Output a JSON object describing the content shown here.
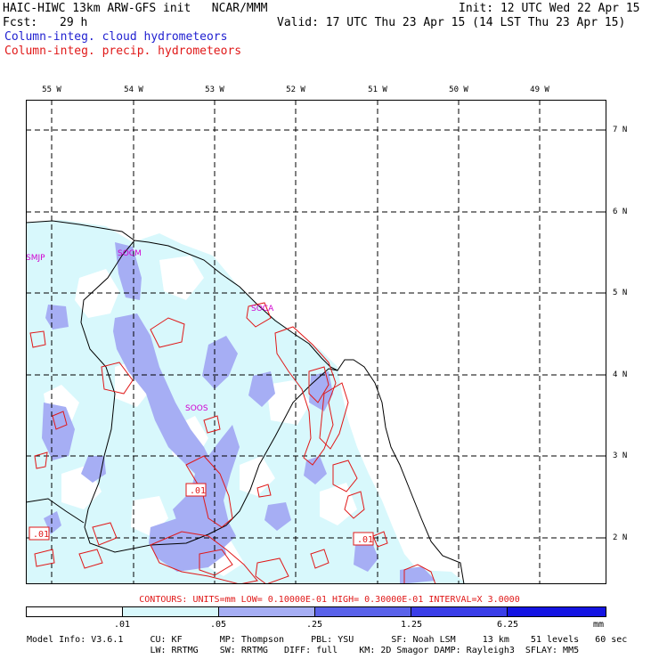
{
  "header": {
    "title_left": "HAIC-HIWC 13km ARW-GFS init   NCAR/MMM",
    "init": "Init: 12 UTC Wed 22 Apr 15",
    "fcst_label": "Fcst:",
    "fcst_value": "29 h",
    "valid": "Valid: 17 UTC Thu 23 Apr 15 (14 LST Thu 23 Apr 15)",
    "field1": "Column-integ. cloud hydrometeors",
    "field2": "Column-integ. precip. hydrometeors"
  },
  "colors": {
    "cloud_fill_1": "#d8f8fc",
    "cloud_fill_2": "#a6aef4",
    "cloud_fill_3": "#5a62ea",
    "cloud_fill_4": "#3a3ee8",
    "cloud_fill_5": "#1414e2",
    "precip_contour": "#e01818",
    "station": "#d000d0"
  },
  "map": {
    "lon_labels": [
      "55 W",
      "54 W",
      "53 W",
      "52 W",
      "51 W",
      "50 W",
      "49 W"
    ],
    "lat_labels": [
      "7 N",
      "6 N",
      "5 N",
      "4 N",
      "3 N",
      "2 N"
    ],
    "stations": [
      "SMJP",
      "SOCM",
      "SOCA",
      "SOOS"
    ],
    "contour_labels": [
      ".01",
      ".01",
      ".01"
    ]
  },
  "legend": {
    "contours": "CONTOURS:  UNITS=mm  LOW= 0.10000E-01  HIGH= 0.30000E-01  INTERVAL=X  3.0000",
    "ticks": [
      ".01",
      ".05",
      ".25",
      "1.25",
      "6.25"
    ],
    "unit": "mm"
  },
  "model_info": {
    "line1": "Model Info: V3.6.1     CU: KF       MP: Thompson     PBL: YSU       SF: Noah LSM     13 km    51 levels   60 sec",
    "line2": "                       LW: RRTMG    SW: RRTMG   DIFF: full    KM: 2D Smagor DAMP: Rayleigh3  SFLAY: MM5"
  }
}
